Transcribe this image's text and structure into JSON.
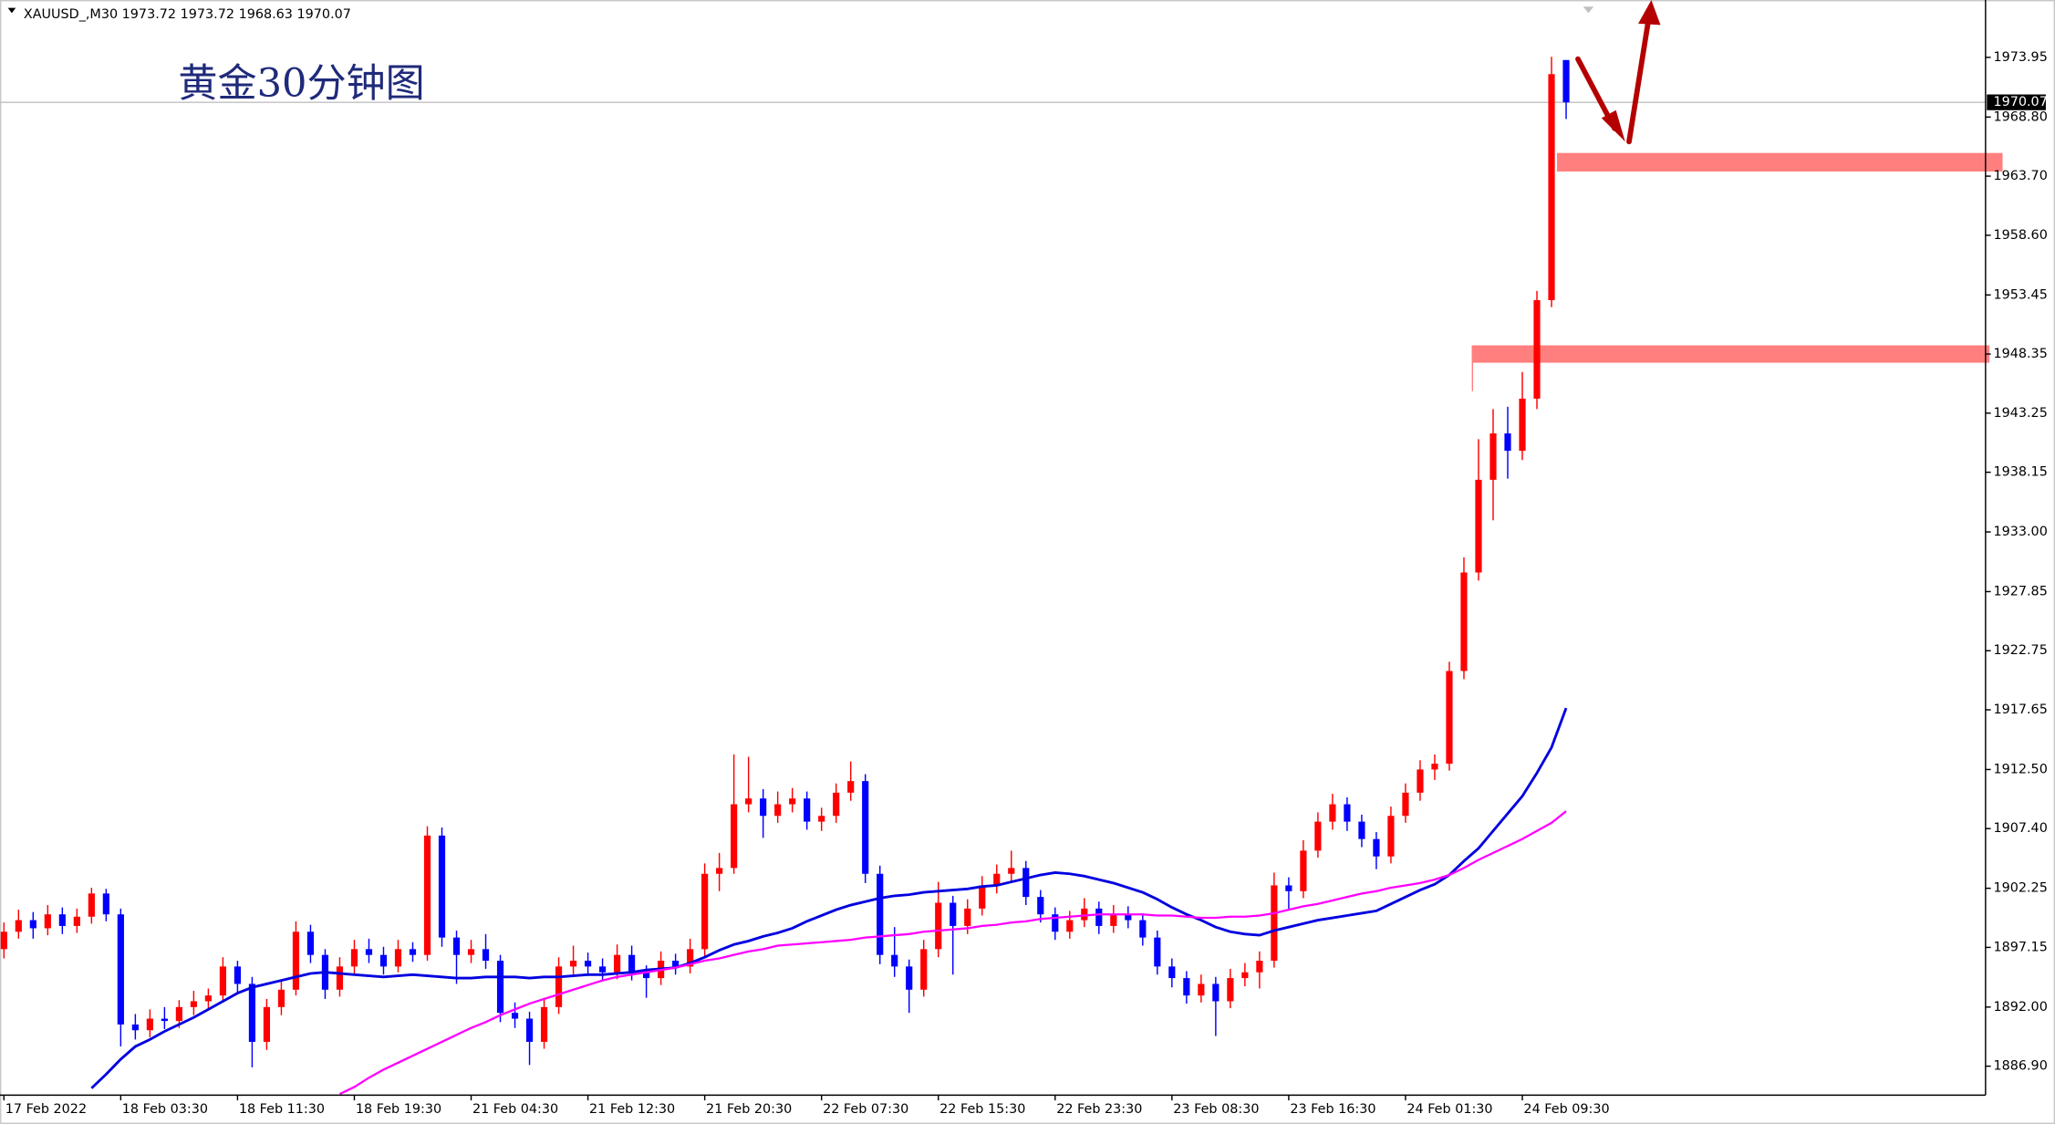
{
  "chart_data": {
    "type": "candlestick",
    "symbol": "XAUUSD_,M30",
    "title": "黄金30分钟图",
    "up_color": "#ff0000",
    "down_color": "#0000ff",
    "ylim": [
      1884.4,
      1978.9
    ],
    "yticks": [
      1973.95,
      {
        "value": 1968.8,
        "label": "1968.80"
      },
      {
        "value": 1963.7,
        "label": "1963.70"
      },
      {
        "value": 1958.6,
        "label": "1958.60"
      },
      1953.45,
      1948.35,
      1943.25,
      1938.15,
      {
        "value": 1933,
        "label": "1933.00"
      },
      1927.85,
      1922.75,
      1917.65,
      {
        "value": 1912.5,
        "label": "1912.50"
      },
      {
        "value": 1907.4,
        "label": "1907.40"
      },
      1902.25,
      1897.15,
      {
        "value": 1892,
        "label": "1892.00"
      },
      {
        "value": 1886.9,
        "label": "1886.90"
      }
    ],
    "categories": [
      "17 Feb 2022",
      null,
      null,
      null,
      null,
      null,
      null,
      null,
      "18 Feb 03:30",
      null,
      null,
      null,
      null,
      null,
      null,
      null,
      "18 Feb 11:30",
      null,
      null,
      null,
      null,
      null,
      null,
      null,
      "18 Feb 19:30",
      null,
      null,
      null,
      null,
      null,
      null,
      null,
      "21 Feb 04:30",
      null,
      null,
      null,
      null,
      null,
      null,
      null,
      "21 Feb 12:30",
      null,
      null,
      null,
      null,
      null,
      null,
      null,
      "21 Feb 20:30",
      null,
      null,
      null,
      null,
      null,
      null,
      null,
      "22 Feb 07:30",
      null,
      null,
      null,
      null,
      null,
      null,
      null,
      "22 Feb 15:30",
      null,
      null,
      null,
      null,
      null,
      null,
      null,
      "22 Feb 23:30",
      null,
      null,
      null,
      null,
      null,
      null,
      null,
      "23 Feb 08:30",
      null,
      null,
      null,
      null,
      null,
      null,
      null,
      "23 Feb 16:30",
      null,
      null,
      null,
      null,
      null,
      null,
      null,
      "24 Feb 01:30",
      null,
      null,
      null,
      null,
      null,
      null,
      null,
      "24 Feb 09:30",
      null,
      null,
      null
    ],
    "ohlc": [
      [
        1897.0,
        1899.3,
        1896.2,
        1898.5
      ],
      [
        1898.5,
        1900.4,
        1897.9,
        1899.5
      ],
      [
        1899.5,
        1900.2,
        1897.9,
        1898.8
      ],
      [
        1898.8,
        1900.8,
        1898.2,
        1900.0
      ],
      [
        1900.0,
        1900.6,
        1898.3,
        1899.0
      ],
      [
        1899.0,
        1900.5,
        1898.4,
        1899.8
      ],
      [
        1899.8,
        1902.3,
        1899.2,
        1901.8
      ],
      [
        1901.8,
        1902.2,
        1899.4,
        1900.0
      ],
      [
        1900.0,
        1900.5,
        1888.6,
        1890.5
      ],
      [
        1890.5,
        1891.4,
        1889.2,
        1890.0
      ],
      [
        1890.0,
        1891.8,
        1889.4,
        1891.0
      ],
      [
        1891.0,
        1892.0,
        1890.1,
        1890.8
      ],
      [
        1890.8,
        1892.6,
        1890.2,
        1892.0
      ],
      [
        1892.0,
        1893.4,
        1891.3,
        1892.5
      ],
      [
        1892.5,
        1893.6,
        1891.8,
        1893.0
      ],
      [
        1893.0,
        1896.3,
        1892.4,
        1895.5
      ],
      [
        1895.5,
        1896.0,
        1893.2,
        1894.0
      ],
      [
        1894.0,
        1894.6,
        1886.8,
        1889.0
      ],
      [
        1889.0,
        1892.7,
        1888.3,
        1892.0
      ],
      [
        1892.0,
        1894.2,
        1891.3,
        1893.5
      ],
      [
        1893.5,
        1899.4,
        1893.0,
        1898.5
      ],
      [
        1898.5,
        1899.1,
        1895.8,
        1896.5
      ],
      [
        1896.5,
        1897.0,
        1892.7,
        1893.5
      ],
      [
        1893.5,
        1896.3,
        1892.9,
        1895.5
      ],
      [
        1895.5,
        1897.8,
        1894.9,
        1897.0
      ],
      [
        1897.0,
        1897.9,
        1895.8,
        1896.5
      ],
      [
        1896.5,
        1897.2,
        1894.8,
        1895.5
      ],
      [
        1895.5,
        1897.8,
        1895.0,
        1897.0
      ],
      [
        1897.0,
        1897.6,
        1895.9,
        1896.5
      ],
      [
        1896.5,
        1907.6,
        1896.0,
        1906.8
      ],
      [
        1906.8,
        1907.5,
        1897.2,
        1898.0
      ],
      [
        1898.0,
        1898.6,
        1894.0,
        1896.5
      ],
      [
        1896.5,
        1897.8,
        1895.8,
        1897.0
      ],
      [
        1897.0,
        1898.3,
        1895.3,
        1896.0
      ],
      [
        1896.0,
        1896.5,
        1890.7,
        1891.5
      ],
      [
        1891.5,
        1892.4,
        1890.2,
        1891.0
      ],
      [
        1891.0,
        1891.6,
        1887.0,
        1889.0
      ],
      [
        1889.0,
        1892.8,
        1888.4,
        1892.0
      ],
      [
        1892.0,
        1896.3,
        1891.4,
        1895.5
      ],
      [
        1895.5,
        1897.3,
        1894.8,
        1896.0
      ],
      [
        1896.0,
        1896.7,
        1894.7,
        1895.5
      ],
      [
        1895.5,
        1896.2,
        1894.2,
        1895.0
      ],
      [
        1895.0,
        1897.4,
        1894.4,
        1896.5
      ],
      [
        1896.5,
        1897.3,
        1894.3,
        1895.0
      ],
      [
        1895.0,
        1895.6,
        1892.8,
        1894.5
      ],
      [
        1894.5,
        1896.8,
        1893.9,
        1896.0
      ],
      [
        1896.0,
        1896.6,
        1894.8,
        1895.5
      ],
      [
        1895.5,
        1897.9,
        1894.9,
        1897.0
      ],
      [
        1897.0,
        1904.4,
        1896.4,
        1903.5
      ],
      [
        1903.5,
        1905.3,
        1902.0,
        1904.0
      ],
      [
        1904.0,
        1913.8,
        1903.5,
        1909.5
      ],
      [
        1909.5,
        1913.6,
        1908.8,
        1910.0
      ],
      [
        1910.0,
        1910.8,
        1906.6,
        1908.5
      ],
      [
        1908.5,
        1910.6,
        1907.9,
        1909.5
      ],
      [
        1909.5,
        1910.9,
        1908.8,
        1910.0
      ],
      [
        1910.0,
        1910.6,
        1907.3,
        1908.0
      ],
      [
        1908.0,
        1909.2,
        1907.2,
        1908.5
      ],
      [
        1908.5,
        1911.3,
        1907.9,
        1910.5
      ],
      [
        1910.5,
        1913.2,
        1909.8,
        1911.5
      ],
      [
        1911.5,
        1912.1,
        1902.7,
        1903.5
      ],
      [
        1903.5,
        1904.2,
        1895.7,
        1896.5
      ],
      [
        1896.5,
        1898.9,
        1894.6,
        1895.5
      ],
      [
        1895.5,
        1896.1,
        1891.5,
        1893.5
      ],
      [
        1893.5,
        1897.8,
        1892.9,
        1897.0
      ],
      [
        1897.0,
        1902.8,
        1896.3,
        1901.0
      ],
      [
        1901.0,
        1901.6,
        1894.8,
        1899.0
      ],
      [
        1899.0,
        1901.3,
        1898.3,
        1900.5
      ],
      [
        1900.5,
        1903.3,
        1899.9,
        1902.5
      ],
      [
        1902.5,
        1904.3,
        1901.8,
        1903.5
      ],
      [
        1903.5,
        1905.5,
        1902.8,
        1904.0
      ],
      [
        1904.0,
        1904.6,
        1900.8,
        1901.5
      ],
      [
        1901.5,
        1902.1,
        1899.3,
        1900.0
      ],
      [
        1900.0,
        1900.6,
        1897.8,
        1898.5
      ],
      [
        1898.5,
        1900.3,
        1897.9,
        1899.5
      ],
      [
        1899.5,
        1901.4,
        1898.9,
        1900.5
      ],
      [
        1900.5,
        1901.1,
        1898.3,
        1899.0
      ],
      [
        1899.0,
        1900.8,
        1898.4,
        1900.0
      ],
      [
        1900.0,
        1900.7,
        1898.8,
        1899.5
      ],
      [
        1899.5,
        1900.1,
        1897.3,
        1898.0
      ],
      [
        1898.0,
        1898.6,
        1894.8,
        1895.5
      ],
      [
        1895.5,
        1896.2,
        1893.7,
        1894.5
      ],
      [
        1894.5,
        1895.1,
        1892.3,
        1893.0
      ],
      [
        1893.0,
        1894.8,
        1892.4,
        1894.0
      ],
      [
        1894.0,
        1894.6,
        1889.5,
        1892.5
      ],
      [
        1892.5,
        1895.3,
        1891.9,
        1894.5
      ],
      [
        1894.5,
        1895.8,
        1893.8,
        1895.0
      ],
      [
        1895.0,
        1896.8,
        1893.6,
        1896.0
      ],
      [
        1896.0,
        1903.6,
        1895.4,
        1902.5
      ],
      [
        1902.5,
        1903.2,
        1900.4,
        1902.0
      ],
      [
        1902.0,
        1906.4,
        1901.4,
        1905.5
      ],
      [
        1905.5,
        1908.8,
        1904.9,
        1908.0
      ],
      [
        1908.0,
        1910.4,
        1907.3,
        1909.5
      ],
      [
        1909.5,
        1910.1,
        1907.2,
        1908.0
      ],
      [
        1908.0,
        1908.6,
        1905.8,
        1906.5
      ],
      [
        1906.5,
        1907.1,
        1903.9,
        1905.0
      ],
      [
        1905.0,
        1909.3,
        1904.4,
        1908.5
      ],
      [
        1908.5,
        1911.3,
        1907.9,
        1910.5
      ],
      [
        1910.5,
        1913.3,
        1909.8,
        1912.5
      ],
      [
        1912.5,
        1913.8,
        1911.6,
        1913.0
      ],
      [
        1913.0,
        1921.8,
        1912.4,
        1921.0
      ],
      [
        1921.0,
        1930.8,
        1920.3,
        1929.5
      ],
      [
        1929.5,
        1941.0,
        1928.8,
        1937.5
      ],
      [
        1937.5,
        1943.6,
        1934.0,
        1941.5
      ],
      [
        1941.5,
        1943.8,
        1937.6,
        1940.0
      ],
      [
        1940.0,
        1946.8,
        1939.2,
        1944.5
      ],
      [
        1944.5,
        1953.8,
        1943.6,
        1953.0
      ],
      [
        1953.0,
        1974.0,
        1952.4,
        1972.5
      ],
      [
        1973.72,
        1973.72,
        1968.63,
        1970.07
      ]
    ],
    "lines": [
      {
        "color": "#0000e0",
        "values": [
          null,
          null,
          null,
          null,
          null,
          null,
          1885.0,
          1886.2,
          1887.5,
          1888.6,
          1889.2,
          1889.9,
          1890.5,
          1891.1,
          1891.8,
          1892.5,
          1893.2,
          1893.7,
          1894.0,
          1894.3,
          1894.6,
          1894.9,
          1895.0,
          1894.9,
          1894.8,
          1894.7,
          1894.6,
          1894.7,
          1894.8,
          1894.7,
          1894.6,
          1894.5,
          1894.5,
          1894.6,
          1894.6,
          1894.6,
          1894.5,
          1894.6,
          1894.6,
          1894.7,
          1894.8,
          1894.8,
          1894.9,
          1895.0,
          1895.2,
          1895.3,
          1895.4,
          1895.8,
          1896.3,
          1896.9,
          1897.4,
          1897.7,
          1898.1,
          1898.4,
          1898.8,
          1899.4,
          1899.9,
          1900.4,
          1900.8,
          1901.1,
          1901.4,
          1901.6,
          1901.7,
          1901.9,
          1902.0,
          1902.1,
          1902.2,
          1902.4,
          1902.5,
          1902.8,
          1903.1,
          1903.4,
          1903.6,
          1903.5,
          1903.3,
          1903.0,
          1902.7,
          1902.3,
          1901.9,
          1901.3,
          1900.6,
          1900.0,
          1899.5,
          1898.9,
          1898.5,
          1898.3,
          1898.2,
          1898.6,
          1898.9,
          1899.2,
          1899.5,
          1899.7,
          1899.9,
          1900.1,
          1900.3,
          1900.9,
          1901.5,
          1902.1,
          1902.6,
          1903.4,
          1904.6,
          1905.7,
          1907.2,
          1908.7,
          1910.2,
          1912.2,
          1914.4,
          1917.8
        ]
      },
      {
        "color": "#ff00ff",
        "values": [
          null,
          null,
          null,
          null,
          null,
          null,
          null,
          null,
          null,
          null,
          null,
          null,
          null,
          null,
          null,
          null,
          null,
          null,
          null,
          null,
          null,
          null,
          null,
          1884.5,
          1885.1,
          1885.9,
          1886.6,
          1887.2,
          1887.8,
          1888.4,
          1889.0,
          1889.6,
          1890.2,
          1890.7,
          1891.3,
          1891.8,
          1892.3,
          1892.7,
          1893.1,
          1893.5,
          1893.9,
          1894.3,
          1894.6,
          1894.8,
          1895.0,
          1895.2,
          1895.4,
          1895.7,
          1896.0,
          1896.2,
          1896.5,
          1896.8,
          1897.0,
          1897.3,
          1897.4,
          1897.5,
          1897.6,
          1897.7,
          1897.8,
          1898.0,
          1898.1,
          1898.2,
          1898.3,
          1898.5,
          1898.6,
          1898.7,
          1898.8,
          1899.0,
          1899.1,
          1899.3,
          1899.4,
          1899.6,
          1899.7,
          1899.8,
          1899.9,
          1900.0,
          1900.0,
          1900.0,
          1900.0,
          1899.9,
          1899.9,
          1899.8,
          1899.7,
          1899.7,
          1899.8,
          1899.8,
          1899.9,
          1900.1,
          1900.4,
          1900.7,
          1900.9,
          1901.2,
          1901.5,
          1901.8,
          1902.0,
          1902.3,
          1902.5,
          1902.7,
          1903.0,
          1903.4,
          1904.0,
          1904.7,
          1905.3,
          1905.9,
          1906.5,
          1907.2,
          1907.9,
          1908.9
        ]
      }
    ],
    "zones": {
      "color": "#ff7f7f",
      "ranges": [
        [
          1947.6,
          1949.1
        ],
        [
          1964.1,
          1965.7
        ]
      ]
    }
  }
}
